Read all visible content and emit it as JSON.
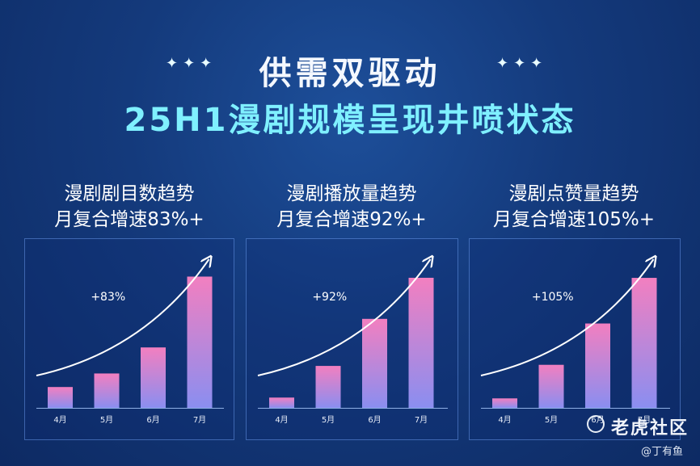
{
  "header": {
    "line1": "供需双驱动",
    "line2": "25H1漫剧规模呈现井喷状态",
    "sparkle": "✦✦✦"
  },
  "watermark": {
    "text": "老虎社区",
    "author": "@丁有鱼"
  },
  "chart_data": [
    {
      "type": "bar",
      "title": "漫剧剧目数趋势",
      "subtitle": "月复合增速83%+",
      "categories": [
        "4月",
        "5月",
        "6月",
        "7月"
      ],
      "values": [
        1.0,
        1.65,
        2.9,
        6.3
      ],
      "annotation": "+83%",
      "ylim": [
        0,
        6.9
      ]
    },
    {
      "type": "bar",
      "title": "漫剧播放量趋势",
      "subtitle": "月复合增速92%+",
      "categories": [
        "4月",
        "5月",
        "6月",
        "7月"
      ],
      "values": [
        0.6,
        2.45,
        5.2,
        7.6
      ],
      "annotation": "+92%",
      "ylim": [
        0,
        8.4
      ]
    },
    {
      "type": "bar",
      "title": "漫剧点赞量趋势",
      "subtitle": "月复合增速105%+",
      "categories": [
        "4月",
        "5月",
        "6月",
        "7月"
      ],
      "values": [
        0.55,
        2.5,
        4.9,
        7.55
      ],
      "annotation": "+105%",
      "ylim": [
        0,
        8.35
      ]
    }
  ]
}
